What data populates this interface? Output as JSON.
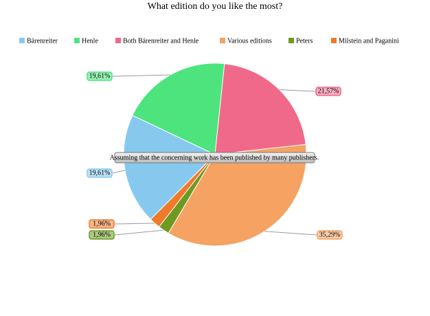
{
  "chart_data": {
    "type": "pie",
    "title": "What edition do you like the most?",
    "annotation": "Assuming that the concerning work has been published by many publishers.",
    "categories": [
      "Bärenreiter",
      "Henle",
      "Both Bärenreiter and Henle",
      "Various editions",
      "Peters",
      "Milstein and Paganini"
    ],
    "values": [
      19.61,
      19.61,
      21.57,
      35.29,
      1.96,
      1.96
    ],
    "value_labels": [
      "19,61%",
      "19,61%",
      "21,57%",
      "35,29%",
      "1,96%",
      "1,96%"
    ],
    "colors": [
      "#87c9ee",
      "#4de47e",
      "#f0698a",
      "#f5a263",
      "#6e9a1f",
      "#f07a2a"
    ],
    "legend": "top"
  }
}
